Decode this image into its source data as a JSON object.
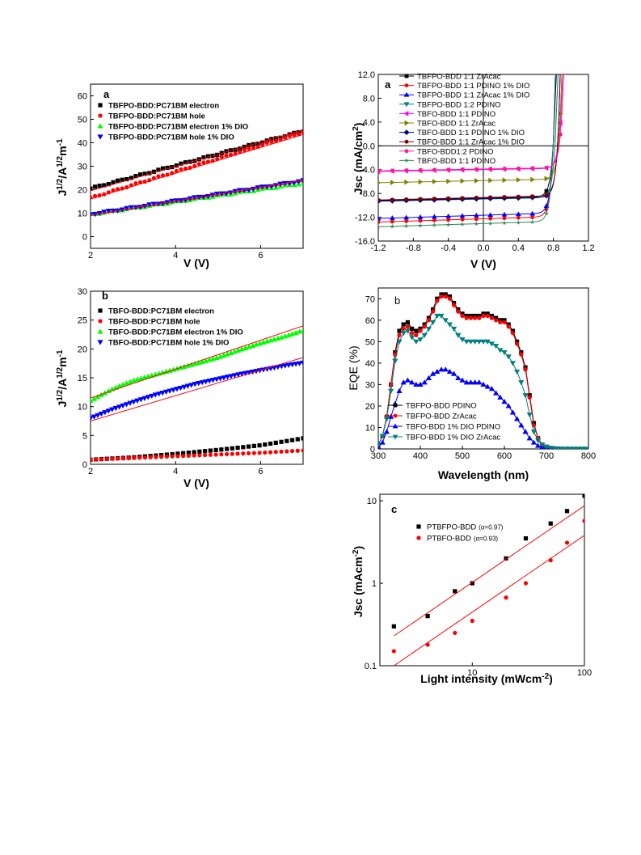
{
  "chart_data": [
    {
      "id": "p1",
      "type": "scatter",
      "panel_label": "a",
      "xlabel": "V (V)",
      "ylabel": "J^1/2/A^1/2m^-1",
      "xlim": [
        2,
        7
      ],
      "ylim": [
        -5,
        65
      ],
      "xticks": [
        2,
        4,
        6
      ],
      "yticks": [
        0,
        10,
        20,
        30,
        40,
        50,
        60
      ],
      "legend_position": "top-left",
      "legend_bold": true,
      "series": [
        {
          "name": "TBFPO-BDD:PC71BM electron",
          "color": "#000000",
          "marker": "square",
          "x": [
            2,
            7
          ],
          "y": [
            20.5,
            45
          ],
          "fit": [
            [
              2,
              19.5
            ],
            [
              7,
              45.5
            ]
          ]
        },
        {
          "name": "TBFPO-BDD:PC71BM hole",
          "color": "#ff0000",
          "marker": "circle",
          "x": [
            2,
            7
          ],
          "y": [
            16.5,
            44.5
          ],
          "fit": [
            [
              2,
              16
            ],
            [
              7,
              43.5
            ]
          ]
        },
        {
          "name": "TBFPO-BDD:PC71BM electron 1% DIO",
          "color": "#00ff00",
          "marker": "triangle",
          "x": [
            2,
            7
          ],
          "y": [
            9.5,
            22.8
          ],
          "fit": [
            [
              2,
              9
            ],
            [
              7,
              23.5
            ]
          ]
        },
        {
          "name": "TBFPO-BDD:PC71BM hole 1% DIO",
          "color": "#0000ff",
          "marker": "triangle-down",
          "x": [
            2,
            7
          ],
          "y": [
            9.5,
            23.8
          ],
          "fit": [
            [
              2,
              9.2
            ],
            [
              7,
              24
            ]
          ]
        }
      ]
    },
    {
      "id": "p2",
      "type": "scatter",
      "panel_label": "b",
      "xlabel": "V (V)",
      "ylabel": "J^1/2/A^1/2m^-1",
      "xlim": [
        2,
        7
      ],
      "ylim": [
        0,
        30
      ],
      "xticks": [
        2,
        4,
        6
      ],
      "yticks": [
        0,
        5,
        10,
        15,
        20,
        25,
        30
      ],
      "legend_position": "top-left",
      "legend_bold": true,
      "series": [
        {
          "name": "TBFO-BDD:PC71BM electron",
          "color": "#000000",
          "marker": "square",
          "x": [
            2,
            3,
            4,
            5,
            6,
            7
          ],
          "y": [
            0.8,
            1.2,
            1.8,
            2.5,
            3.3,
            4.5
          ],
          "fit": []
        },
        {
          "name": "TBFO-BDD:PC71BM hole",
          "color": "#ff0000",
          "marker": "circle",
          "x": [
            2,
            3,
            4,
            5,
            6,
            7
          ],
          "y": [
            0.8,
            1.1,
            1.4,
            1.7,
            2.0,
            2.4
          ],
          "fit": []
        },
        {
          "name": "TBFO-BDD:PC71BM electron 1% DIO",
          "color": "#00ff00",
          "marker": "triangle",
          "x": [
            2,
            2.5,
            3,
            3.5,
            4,
            4.5,
            5,
            5.5,
            6,
            6.5,
            7
          ],
          "y": [
            11,
            13,
            14.5,
            15.5,
            16.5,
            17.5,
            18.5,
            19.8,
            21,
            22,
            23.2
          ],
          "fit": [
            [
              2,
              11.5
            ],
            [
              7,
              24
            ]
          ]
        },
        {
          "name": "TBFO-BDD:PC71BM hole 1% DIO",
          "color": "#0000ff",
          "marker": "triangle-down",
          "x": [
            2,
            2.5,
            3,
            3.5,
            4,
            4.5,
            5,
            5.5,
            6,
            6.5,
            7
          ],
          "y": [
            8,
            9.5,
            10.8,
            12,
            13,
            14,
            14.8,
            15.6,
            16.3,
            17,
            17.6
          ],
          "fit": [
            [
              2,
              7.5
            ],
            [
              7,
              18.5
            ]
          ]
        }
      ]
    },
    {
      "id": "p3",
      "type": "line",
      "panel_label": "a",
      "xlabel": "V (V)",
      "ylabel": "Jsc (mA/cm2)",
      "xlim": [
        -1.2,
        1.2
      ],
      "ylim": [
        -16,
        12
      ],
      "xticks": [
        -1.2,
        -0.8,
        -0.4,
        0.0,
        0.4,
        0.8,
        1.2
      ],
      "yticks": [
        -16,
        -12,
        -8,
        -4,
        0,
        4,
        8,
        12
      ],
      "legend_position": "top-left",
      "legend_bold": false,
      "series": [
        {
          "name": "TBFPO-BDD 1:1 ZrAcac",
          "color": "#000000",
          "marker": "square",
          "jsc": -9.2,
          "slope": 0.7,
          "voc": 0.8
        },
        {
          "name": "TBFPO-BDD 1:1 PDINO 1% DIO",
          "color": "#ff0000",
          "marker": "circle",
          "jsc": -12.8,
          "slope": 0.9,
          "voc": 0.8
        },
        {
          "name": "TBFPO-BDD 1:1 ZrAcac 1% DIO",
          "color": "#0000ff",
          "marker": "triangle",
          "jsc": -12.2,
          "slope": 0.9,
          "voc": 0.8
        },
        {
          "name": "TBFPO-BDD 1:2 PDINO",
          "color": "#008080",
          "marker": "triangle-down",
          "jsc": -9.3,
          "slope": 0.6,
          "voc": 0.82
        },
        {
          "name": "TBFO-BDD 1:1 PDINO",
          "color": "#ff00ff",
          "marker": "triangle-left",
          "jsc": -4.3,
          "slope": 0.5,
          "voc": 0.86
        },
        {
          "name": "TBFO-BDD 1:1 ZrAcac",
          "color": "#808000",
          "marker": "triangle-right",
          "jsc": -6.2,
          "slope": 0.6,
          "voc": 0.86
        },
        {
          "name": "TBFO-BDD 1:1 PDINO 1% DIO",
          "color": "#000080",
          "marker": "diamond",
          "jsc": -9.3,
          "slope": 0.7,
          "voc": 0.85
        },
        {
          "name": "TBFO-BDD 1:1 ZrAcac 1% DIO",
          "color": "#800000",
          "marker": "circle",
          "jsc": -9.1,
          "slope": 0.7,
          "voc": 0.85
        },
        {
          "name": "TBFO-BDD1:2 PDINO",
          "color": "#ff1493",
          "marker": "circle",
          "jsc": -4.2,
          "slope": 0.5,
          "voc": 0.87
        },
        {
          "name": "TBFO-BDD 1:1 PDINO",
          "color": "#2e8b57",
          "marker": "star",
          "jsc": -13.6,
          "slope": 0.9,
          "voc": 0.8
        }
      ]
    },
    {
      "id": "p4",
      "type": "line",
      "panel_label": "b",
      "xlabel": "Wavelength (nm)",
      "ylabel": "EQE (%)",
      "xlim": [
        300,
        800
      ],
      "ylim": [
        0,
        75
      ],
      "xticks": [
        300,
        400,
        500,
        600,
        700,
        800
      ],
      "yticks": [
        0,
        10,
        20,
        30,
        40,
        50,
        60,
        70
      ],
      "legend_position": "bottom-left",
      "legend_bold": false,
      "x": [
        300,
        310,
        320,
        330,
        340,
        350,
        360,
        370,
        380,
        390,
        400,
        410,
        420,
        430,
        440,
        450,
        460,
        470,
        480,
        490,
        500,
        510,
        520,
        530,
        540,
        550,
        560,
        570,
        580,
        590,
        600,
        610,
        620,
        630,
        640,
        650,
        660,
        670,
        680,
        690,
        700,
        710,
        720,
        730,
        740,
        750,
        760,
        770,
        780,
        790,
        800
      ],
      "series": [
        {
          "name": "TBFPO-BDD PDINO",
          "color": "#000000",
          "marker": "square",
          "y": [
            2,
            6,
            15,
            30,
            45,
            55,
            58,
            59,
            56,
            55,
            56,
            58,
            61,
            65,
            70,
            72,
            72,
            71,
            68,
            65,
            63,
            62,
            62,
            62,
            62,
            63,
            63,
            62,
            61,
            60,
            60,
            58,
            55,
            50,
            45,
            38,
            25,
            12,
            5,
            2,
            1,
            0.5,
            0.2,
            0.1,
            0,
            0,
            0,
            0,
            0,
            0,
            0
          ]
        },
        {
          "name": "TBFPO-BDD ZrAcac",
          "color": "#ff0000",
          "marker": "circle",
          "y": [
            2,
            6,
            15,
            30,
            44,
            53,
            56,
            57,
            54,
            53,
            55,
            57,
            60,
            64,
            69,
            71,
            71,
            70,
            67,
            64,
            62,
            61,
            61,
            61,
            61,
            62,
            62,
            61,
            60,
            59,
            59,
            57,
            54,
            49,
            44,
            37,
            24,
            11,
            5,
            2,
            1,
            0.5,
            0.2,
            0.1,
            0,
            0,
            0,
            0,
            0,
            0,
            0
          ]
        },
        {
          "name": "TBFO-BDD 1% DIO PDINO",
          "color": "#0000ff",
          "marker": "triangle",
          "y": [
            1,
            3,
            8,
            15,
            21,
            27,
            31,
            32,
            31,
            30,
            30,
            31,
            33,
            35,
            36,
            37,
            37,
            36,
            35,
            33,
            32,
            31,
            31,
            31,
            31,
            30,
            29,
            28,
            26,
            24,
            22,
            20,
            17,
            14,
            11,
            8,
            5,
            3,
            1.5,
            0.8,
            0.4,
            0.2,
            0.1,
            0,
            0,
            0,
            0,
            0,
            0,
            0,
            0
          ]
        },
        {
          "name": "TBFO-BDD 1% DIO ZrAcac",
          "color": "#008080",
          "marker": "triangle-down",
          "y": [
            2,
            6,
            14,
            27,
            41,
            50,
            54,
            55,
            52,
            50,
            51,
            53,
            56,
            59,
            62,
            62,
            60,
            58,
            56,
            53,
            51,
            50,
            50,
            50,
            50,
            50,
            50,
            49,
            48,
            46,
            45,
            43,
            40,
            36,
            31,
            25,
            16,
            8,
            4,
            2,
            1,
            0.5,
            0.2,
            0.1,
            0,
            0,
            0,
            0,
            0,
            0,
            0
          ]
        }
      ]
    },
    {
      "id": "p5",
      "type": "scatter",
      "panel_label": "c",
      "xlabel": "Light intensity (mWcm^-2)",
      "ylabel": "Jsc (mAcm^-2)",
      "xscale": "log",
      "yscale": "log",
      "xlim": [
        1.5,
        100
      ],
      "ylim": [
        0.1,
        12
      ],
      "xticks": [
        10,
        100
      ],
      "yticks": [
        0.1,
        1,
        10
      ],
      "legend_position": "top-left",
      "legend_bold": false,
      "series": [
        {
          "name": "PTBFPO-BDD",
          "alpha_label": "(α=0.97)",
          "color": "#000000",
          "marker": "square",
          "x": [
            2,
            4,
            7,
            10,
            20,
            30,
            50,
            70,
            100
          ],
          "y": [
            0.3,
            0.4,
            0.8,
            1.0,
            2.0,
            3.5,
            5.3,
            7.5,
            11.5
          ],
          "fit": [
            [
              2,
              0.23
            ],
            [
              100,
              8.7
            ]
          ]
        },
        {
          "name": "PTBFO-BDD",
          "alpha_label": "(α=0.93)",
          "color": "#ff0000",
          "marker": "circle",
          "x": [
            2,
            4,
            7,
            10,
            20,
            30,
            50,
            70,
            100
          ],
          "y": [
            0.15,
            0.18,
            0.25,
            0.35,
            0.67,
            1.0,
            1.9,
            3.1,
            5.7
          ],
          "fit": [
            [
              2,
              0.1
            ],
            [
              100,
              3.8
            ]
          ]
        }
      ]
    }
  ]
}
